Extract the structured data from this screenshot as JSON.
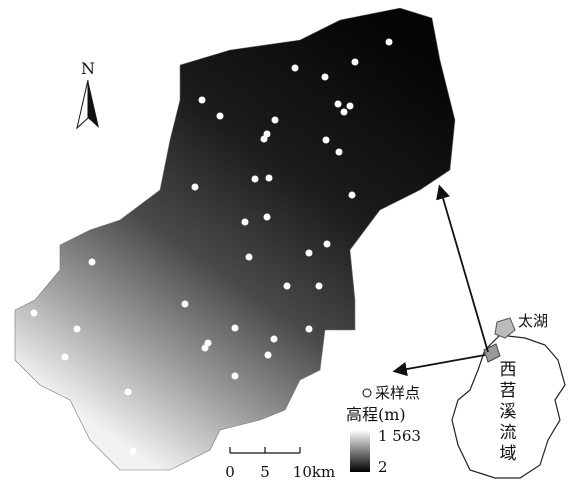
{
  "north_arrow": "N",
  "legend": {
    "sample_label": "采样点",
    "elevation_title": "高程(m)",
    "max": "1 563",
    "min": "2"
  },
  "scale_bar": {
    "ticks": [
      "0",
      "5",
      "10km"
    ]
  },
  "inset": {
    "lake": "太湖",
    "basin": [
      "西",
      "苕",
      "溪",
      "流",
      "域"
    ]
  }
}
